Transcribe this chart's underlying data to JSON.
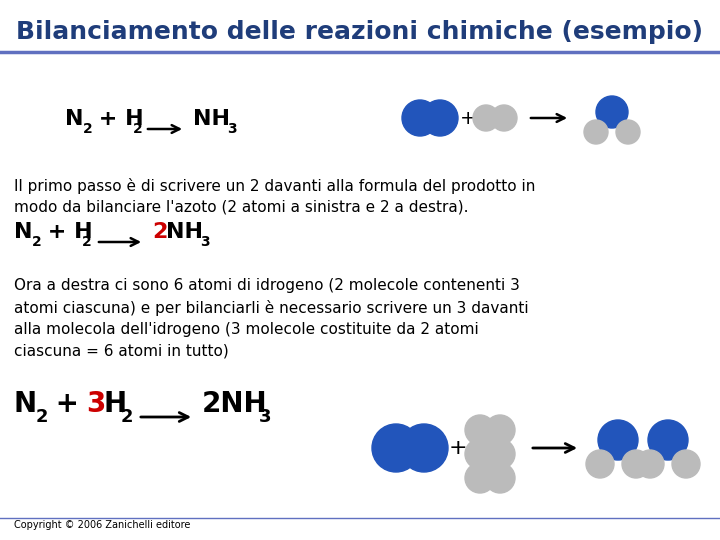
{
  "title": "Bilanciamento delle reazioni chimiche (esempio)",
  "title_color": "#1F3D7A",
  "title_fontsize": 18,
  "bg_color": "#FFFFFF",
  "line_color": "#6070C0",
  "paragraph1_lines": [
    "Il primo passo è di scrivere un 2 davanti alla formula del prodotto in",
    "modo da bilanciare l'azoto (2 atomi a sinistra e 2 a destra)."
  ],
  "paragraph2_lines": [
    "Ora a destra ci sono 6 atomi di idrogeno (2 molecole contenenti 3",
    "atomi ciascuna) e per bilanciarli è necessario scrivere un 3 davanti",
    "alla molecola dell'idrogeno (3 molecole costituite da 2 atomi",
    "ciascuna = 6 atomi in tutto)"
  ],
  "copyright": "Copyright © 2006 Zanichelli editore",
  "blue_color": "#2255BB",
  "gray_color": "#BBBBBB",
  "red_color": "#CC0000",
  "black_color": "#000000"
}
